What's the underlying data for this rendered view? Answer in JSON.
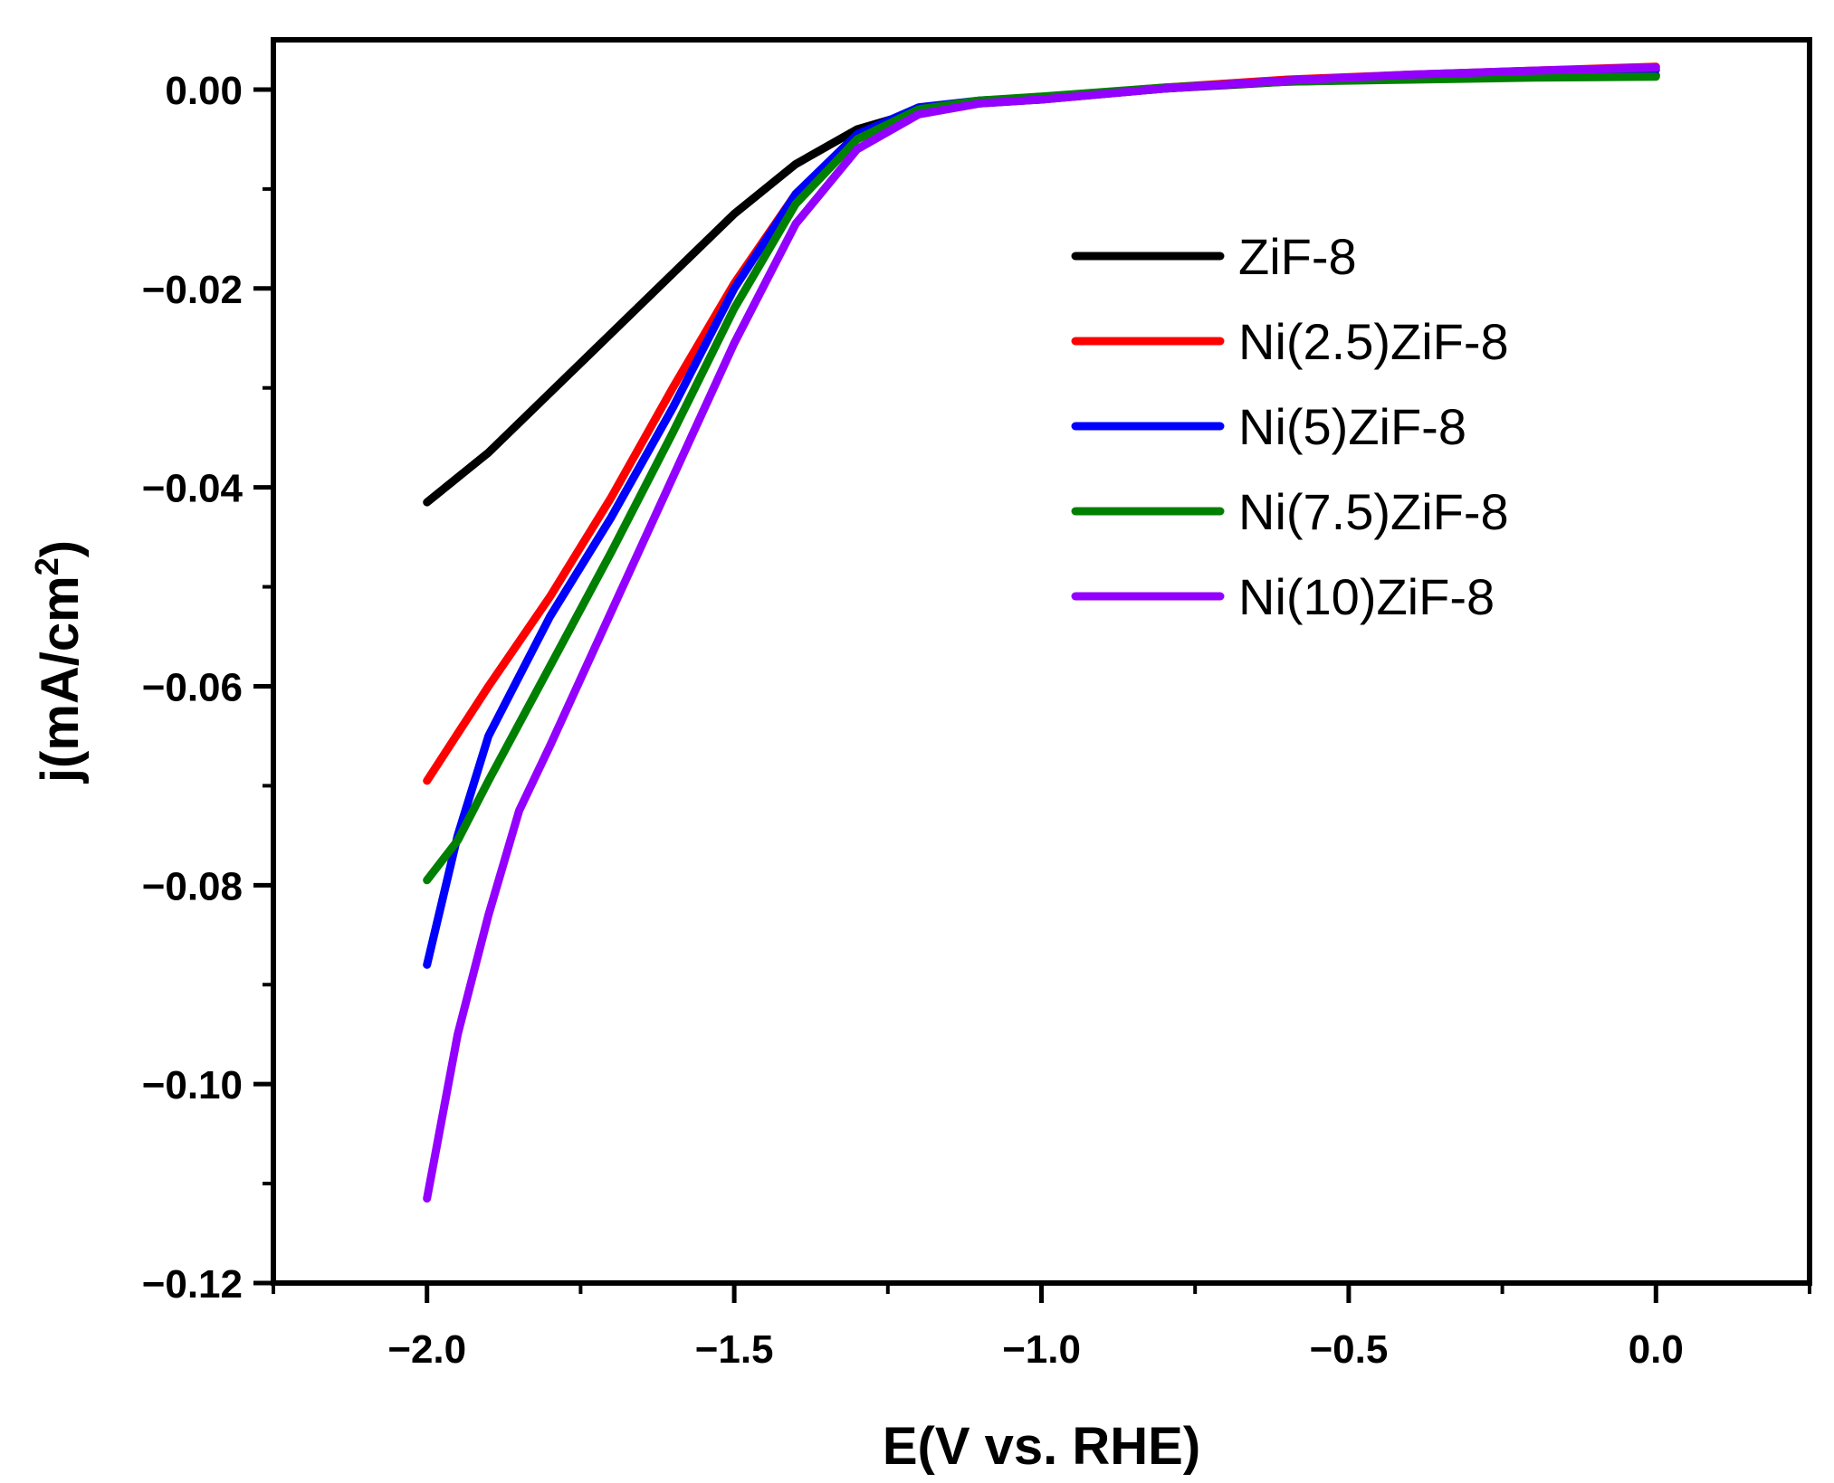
{
  "chart_data": {
    "type": "line",
    "title": "",
    "xlabel": "E(V vs. RHE)",
    "ylabel_main": "j(mA/cm",
    "ylabel_sup": "2",
    "ylabel_end": ")",
    "xlim": [
      -2.25,
      0.25
    ],
    "ylim": [
      -0.12,
      0.005
    ],
    "x_ticks": [
      -2.0,
      -1.5,
      -1.0,
      -0.5,
      0.0
    ],
    "x_tick_labels": [
      "−2.0",
      "−1.5",
      "−1.0",
      "−0.5",
      "0.0"
    ],
    "y_ticks": [
      0.0,
      -0.02,
      -0.04,
      -0.06,
      -0.08,
      -0.1,
      -0.12
    ],
    "y_tick_labels": [
      "0.00",
      "−0.02",
      "−0.04",
      "−0.06",
      "−0.08",
      "−0.10",
      "−0.12"
    ],
    "legend_position": "top-right",
    "series": [
      {
        "name": "ZiF-8",
        "color": "#000000",
        "x": [
          -2.0,
          -1.9,
          -1.8,
          -1.7,
          -1.6,
          -1.5,
          -1.4,
          -1.3,
          -1.2,
          -1.1,
          -1.0,
          -0.8,
          -0.6,
          -0.4,
          -0.2,
          0.0
        ],
        "y": [
          -0.0415,
          -0.0365,
          -0.0305,
          -0.0245,
          -0.0185,
          -0.0125,
          -0.0075,
          -0.004,
          -0.0022,
          -0.0014,
          -0.001,
          0.0001,
          0.0008,
          0.0011,
          0.0013,
          0.0014
        ]
      },
      {
        "name": "Ni(2.5)ZiF-8",
        "color": "#ff0000",
        "x": [
          -2.0,
          -1.9,
          -1.8,
          -1.7,
          -1.6,
          -1.5,
          -1.4,
          -1.3,
          -1.2,
          -1.1,
          -1.0,
          -0.8,
          -0.6,
          -0.4,
          -0.2,
          0.0
        ],
        "y": [
          -0.0695,
          -0.06,
          -0.051,
          -0.041,
          -0.03,
          -0.0195,
          -0.0105,
          -0.005,
          -0.0022,
          -0.0012,
          -0.0008,
          0.0002,
          0.001,
          0.0015,
          0.0019,
          0.0023
        ]
      },
      {
        "name": "Ni(5)ZiF-8",
        "color": "#0000ff",
        "x": [
          -2.0,
          -1.95,
          -1.9,
          -1.8,
          -1.7,
          -1.6,
          -1.5,
          -1.4,
          -1.3,
          -1.2,
          -1.1,
          -1.0,
          -0.8,
          -0.6,
          -0.4,
          -0.2,
          0.0
        ],
        "y": [
          -0.088,
          -0.075,
          -0.065,
          -0.053,
          -0.043,
          -0.032,
          -0.02,
          -0.0105,
          -0.0045,
          -0.0018,
          -0.0011,
          -0.0008,
          0.0001,
          0.0009,
          0.0014,
          0.0017,
          0.002
        ]
      },
      {
        "name": "Ni(7.5)ZiF-8",
        "color": "#008000",
        "x": [
          -2.0,
          -1.95,
          -1.9,
          -1.8,
          -1.7,
          -1.6,
          -1.5,
          -1.4,
          -1.3,
          -1.2,
          -1.1,
          -1.0,
          -0.8,
          -0.6,
          -0.4,
          -0.2,
          0.0
        ],
        "y": [
          -0.0795,
          -0.0755,
          -0.0695,
          -0.058,
          -0.0465,
          -0.0345,
          -0.022,
          -0.0115,
          -0.005,
          -0.002,
          -0.0011,
          -0.0007,
          0.0002,
          0.0008,
          0.001,
          0.0012,
          0.0013
        ]
      },
      {
        "name": "Ni(10)ZiF-8",
        "color": "#9400ff",
        "x": [
          -2.0,
          -1.95,
          -1.9,
          -1.85,
          -1.8,
          -1.7,
          -1.6,
          -1.5,
          -1.4,
          -1.3,
          -1.2,
          -1.1,
          -1.0,
          -0.8,
          -0.6,
          -0.4,
          -0.2,
          0.0
        ],
        "y": [
          -0.1115,
          -0.095,
          -0.083,
          -0.0725,
          -0.066,
          -0.0525,
          -0.039,
          -0.0255,
          -0.0135,
          -0.006,
          -0.0025,
          -0.0014,
          -0.001,
          0.0001,
          0.0009,
          0.0015,
          0.0019,
          0.0022
        ]
      }
    ]
  }
}
